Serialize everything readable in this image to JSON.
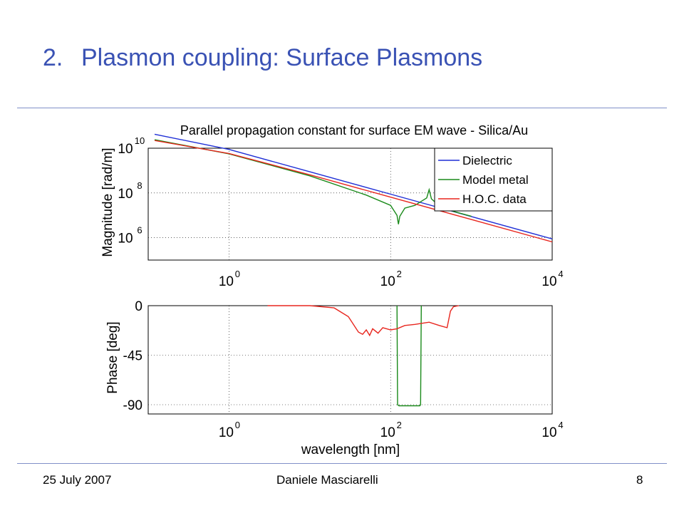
{
  "slide": {
    "title_number": "2.",
    "title_text": "Plasmon coupling: Surface Plasmons",
    "footer_date": "25 July 2007",
    "footer_author": "Daniele Masciarelli",
    "footer_page": "8"
  },
  "colors": {
    "title": "#3a52b4",
    "rule": "#8090c8",
    "dielectric": "#1f2fd6",
    "model_metal": "#1a8a1a",
    "hoc": "#e8261e"
  },
  "chart_data": [
    {
      "type": "line",
      "title": "Parallel propagation constant for surface EM wave - Silica/Au",
      "xlabel": "",
      "ylabel": "Magnitude [rad/m]",
      "xscale": "log",
      "yscale": "log",
      "xlim": [
        0.1,
        10000
      ],
      "ylim": [
        100000,
        10000000000
      ],
      "xticks": [
        {
          "exp": "0",
          "v": 1
        },
        {
          "exp": "2",
          "v": 100
        },
        {
          "exp": "4",
          "v": 10000
        }
      ],
      "yticks": [
        {
          "exp": "6",
          "v": 1000000
        },
        {
          "exp": "8",
          "v": 100000000
        },
        {
          "exp": "10",
          "v": 10000000000
        }
      ],
      "legend_position": "top-right",
      "series": [
        {
          "name": "Dielectric",
          "color": "#1f2fd6",
          "x": [
            0.12,
            1,
            10,
            100,
            1000,
            10000
          ],
          "y": [
            42000000000,
            8800000000,
            880000000,
            88000000,
            8800000,
            880000
          ]
        },
        {
          "name": "Model metal",
          "color": "#1a8a1a",
          "x": [
            0.12,
            1,
            10,
            50,
            100,
            120,
            125,
            130,
            150,
            200,
            280,
            300,
            320,
            400,
            600,
            1000
          ],
          "y": [
            24000000000,
            5600000000,
            580000000,
            80000000,
            28000000,
            10000000,
            4000000,
            9000000,
            21000000,
            28000000,
            60000000,
            140000000,
            55000000,
            26000000,
            15000000,
            9000000
          ]
        },
        {
          "name": "H.O.C. data",
          "color": "#e8261e",
          "x": [
            0.12,
            1,
            10,
            100,
            1000,
            10000
          ],
          "y": [
            22000000000,
            5800000000,
            650000000,
            65000000,
            6500000,
            650000
          ]
        }
      ]
    },
    {
      "type": "line",
      "title": "",
      "xlabel": "wavelength [nm]",
      "ylabel": "Phase [deg]",
      "xscale": "log",
      "xlim": [
        0.1,
        10000
      ],
      "ylim": [
        -100,
        0
      ],
      "xticks": [
        {
          "exp": "0",
          "v": 1
        },
        {
          "exp": "2",
          "v": 100
        },
        {
          "exp": "4",
          "v": 10000
        }
      ],
      "yticks": [
        {
          "label": "0",
          "v": 0
        },
        {
          "label": "-45",
          "v": -45
        },
        {
          "label": "-90",
          "v": -90
        }
      ],
      "series": [
        {
          "name": "Model metal",
          "color": "#1a8a1a",
          "x": [
            120,
            122,
            127,
            230,
            235,
            240
          ],
          "y": [
            0,
            -90,
            -91,
            -91,
            -90,
            0
          ]
        },
        {
          "name": "H.O.C. data",
          "color": "#e8261e",
          "x": [
            3,
            10,
            20,
            30,
            40,
            45,
            50,
            55,
            60,
            70,
            80,
            100,
            120,
            150,
            200,
            300,
            400,
            500,
            550,
            600,
            700
          ],
          "y": [
            0,
            0,
            -2,
            -10,
            -24,
            -26,
            -22,
            -27,
            -21,
            -25,
            -20,
            -22,
            -21,
            -18,
            -17,
            -15,
            -18,
            -20,
            -5,
            -1,
            0
          ]
        }
      ]
    }
  ]
}
